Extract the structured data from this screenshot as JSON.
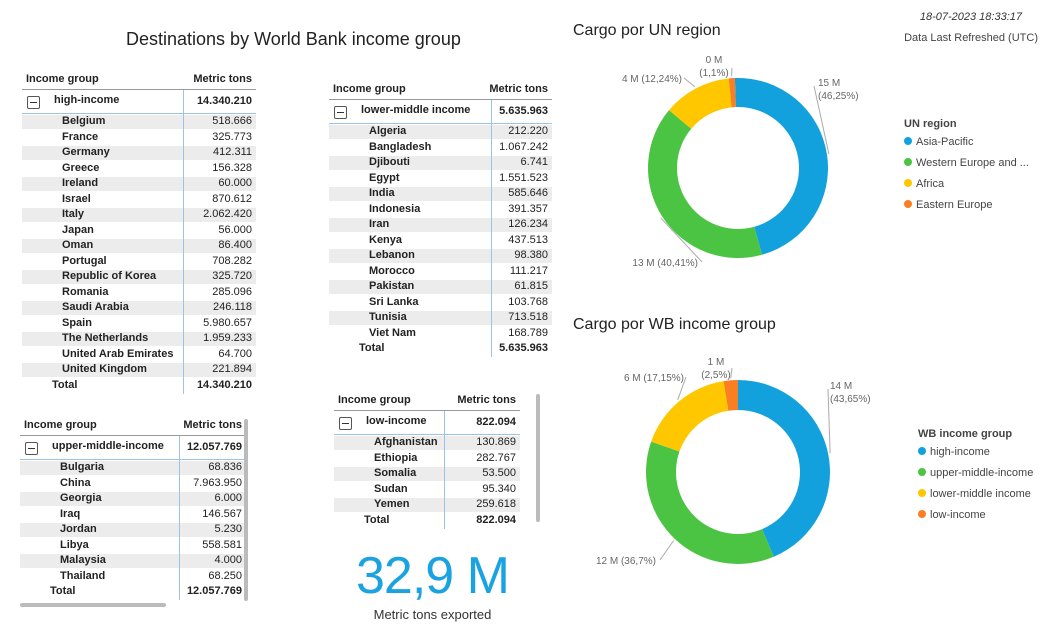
{
  "header": {
    "title": "Destinations by World Bank income group",
    "timestamp": "18-07-2023 18:33:17",
    "refreshed": "Data Last Refreshed (UTC)"
  },
  "tables": {
    "col_group": "Income group",
    "col_value": "Metric tons",
    "total_label": "Total",
    "high": {
      "group": "high-income",
      "group_value": "14.340.210",
      "total": "14.340.210",
      "rows": [
        {
          "name": "Belgium",
          "value": "518.666"
        },
        {
          "name": "France",
          "value": "325.773"
        },
        {
          "name": "Germany",
          "value": "412.311"
        },
        {
          "name": "Greece",
          "value": "156.328"
        },
        {
          "name": "Ireland",
          "value": "60.000"
        },
        {
          "name": "Israel",
          "value": "870.612"
        },
        {
          "name": "Italy",
          "value": "2.062.420"
        },
        {
          "name": "Japan",
          "value": "56.000"
        },
        {
          "name": "Oman",
          "value": "86.400"
        },
        {
          "name": "Portugal",
          "value": "708.282"
        },
        {
          "name": "Republic of Korea",
          "value": "325.720"
        },
        {
          "name": "Romania",
          "value": "285.096"
        },
        {
          "name": "Saudi Arabia",
          "value": "246.118"
        },
        {
          "name": "Spain",
          "value": "5.980.657"
        },
        {
          "name": "The Netherlands",
          "value": "1.959.233"
        },
        {
          "name": "United Arab Emirates",
          "value": "64.700"
        },
        {
          "name": "United Kingdom",
          "value": "221.894"
        }
      ]
    },
    "upper": {
      "group": "upper-middle-income",
      "group_value": "12.057.769",
      "total": "12.057.769",
      "rows": [
        {
          "name": "Bulgaria",
          "value": "68.836"
        },
        {
          "name": "China",
          "value": "7.963.950"
        },
        {
          "name": "Georgia",
          "value": "6.000"
        },
        {
          "name": "Iraq",
          "value": "146.567"
        },
        {
          "name": "Jordan",
          "value": "5.230"
        },
        {
          "name": "Libya",
          "value": "558.581"
        },
        {
          "name": "Malaysia",
          "value": "4.000"
        },
        {
          "name": "Thailand",
          "value": "68.250"
        }
      ]
    },
    "lower": {
      "group": "lower-middle income",
      "group_value": "5.635.963",
      "total": "5.635.963",
      "rows": [
        {
          "name": "Algeria",
          "value": "212.220"
        },
        {
          "name": "Bangladesh",
          "value": "1.067.242"
        },
        {
          "name": "Djibouti",
          "value": "6.741"
        },
        {
          "name": "Egypt",
          "value": "1.551.523"
        },
        {
          "name": "India",
          "value": "585.646"
        },
        {
          "name": "Indonesia",
          "value": "391.357"
        },
        {
          "name": "Iran",
          "value": "126.234"
        },
        {
          "name": "Kenya",
          "value": "437.513"
        },
        {
          "name": "Lebanon",
          "value": "98.380"
        },
        {
          "name": "Morocco",
          "value": "111.217"
        },
        {
          "name": "Pakistan",
          "value": "61.815"
        },
        {
          "name": "Sri Lanka",
          "value": "103.768"
        },
        {
          "name": "Tunisia",
          "value": "713.518"
        },
        {
          "name": "Viet Nam",
          "value": "168.789"
        }
      ]
    },
    "low": {
      "group": "low-income",
      "group_value": "822.094",
      "total": "822.094",
      "rows": [
        {
          "name": "Afghanistan",
          "value": "130.869"
        },
        {
          "name": "Ethiopia",
          "value": "282.767"
        },
        {
          "name": "Somalia",
          "value": "53.500"
        },
        {
          "name": "Sudan",
          "value": "95.340"
        },
        {
          "name": "Yemen",
          "value": "259.618"
        }
      ]
    }
  },
  "kpi": {
    "value": "32,9 M",
    "label": "Metric tons exported"
  },
  "chart_data": [
    {
      "type": "pie",
      "title": "Cargo por UN region",
      "legend_title": "UN region",
      "legend_position": "right",
      "start_angle": -2,
      "categories": [
        "Asia-Pacific",
        "Western Europe and ...",
        "Africa",
        "Eastern Europe"
      ],
      "values": [
        46.25,
        40.41,
        12.24,
        1.1
      ],
      "colors": [
        "#13a1dd",
        "#4cc443",
        "#ffc700",
        "#fa7e22"
      ],
      "data_labels": [
        {
          "line1": "15 M",
          "line2": "(46,25%)"
        },
        {
          "line1": "13 M (40,41%)",
          "line2": ""
        },
        {
          "line1": "4 M (12,24%)",
          "line2": ""
        },
        {
          "line1": "0 M",
          "line2": "(1,1%)"
        }
      ]
    },
    {
      "type": "pie",
      "title": "Cargo por WB income group",
      "legend_title": "WB income group",
      "legend_position": "right",
      "start_angle": 0,
      "categories": [
        "high-income",
        "upper-middle-income",
        "lower-middle income",
        "low-income"
      ],
      "values": [
        43.65,
        36.7,
        17.15,
        2.5
      ],
      "colors": [
        "#13a1dd",
        "#4cc443",
        "#ffc700",
        "#fa7e22"
      ],
      "data_labels": [
        {
          "line1": "14 M",
          "line2": "(43,65%)"
        },
        {
          "line1": "12 M (36,7%)",
          "line2": ""
        },
        {
          "line1": "6 M (17,15%)",
          "line2": ""
        },
        {
          "line1": "1 M",
          "line2": "(2,5%)"
        }
      ]
    }
  ]
}
